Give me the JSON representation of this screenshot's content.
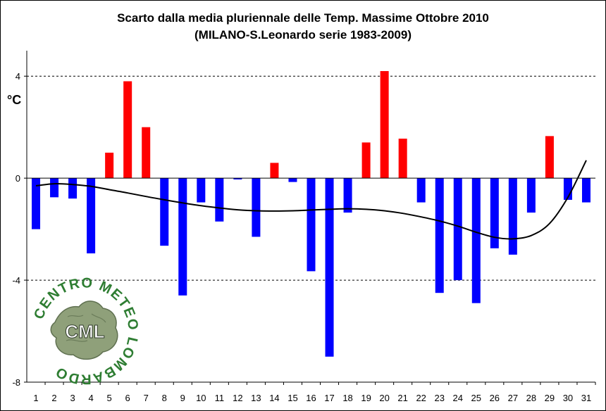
{
  "title_line1": "Scarto dalla media pluriennale delle Temp. Massime Ottobre 2010",
  "title_line2": "(MILANO-S.Leonardo serie 1983-2009)",
  "unit_label": "°C",
  "logo": {
    "text": "CML",
    "ring_text": "CENTRO METEO LOMBARDO"
  },
  "colors": {
    "positive": "#ff0000",
    "negative": "#0000ff",
    "trend": "#000000",
    "gridline": "#000000",
    "logo_green": "#2e7d32"
  },
  "chart_data": {
    "type": "bar",
    "title": "Scarto dalla media pluriennale delle Temp. Massime Ottobre 2010",
    "subtitle": "(MILANO-S.Leonardo serie 1983-2009)",
    "xlabel": "",
    "ylabel": "°C",
    "ylim": [
      -8,
      5
    ],
    "yticks": [
      4,
      0,
      -4,
      -8
    ],
    "grid": "dashed horizontal at ±4",
    "legend": "none",
    "categories": [
      "1",
      "2",
      "3",
      "4",
      "5",
      "6",
      "7",
      "8",
      "9",
      "10",
      "11",
      "12",
      "13",
      "14",
      "15",
      "16",
      "17",
      "18",
      "19",
      "20",
      "21",
      "22",
      "23",
      "24",
      "25",
      "26",
      "27",
      "28",
      "29",
      "30",
      "31"
    ],
    "values": [
      -2.0,
      -0.75,
      -0.8,
      -2.95,
      1.0,
      3.8,
      2.0,
      -2.65,
      -4.6,
      -0.95,
      -1.7,
      -0.05,
      -2.3,
      0.6,
      -0.15,
      -3.65,
      -7.0,
      -1.35,
      1.4,
      4.2,
      1.55,
      -0.95,
      -4.5,
      -4.0,
      -4.9,
      -2.75,
      -3.0,
      -1.35,
      1.65,
      -0.85,
      -0.95
    ],
    "trend": [
      -0.3,
      -0.22,
      -0.25,
      -0.32,
      -0.45,
      -0.58,
      -0.72,
      -0.85,
      -0.97,
      -1.08,
      -1.17,
      -1.24,
      -1.28,
      -1.29,
      -1.28,
      -1.25,
      -1.22,
      -1.2,
      -1.22,
      -1.28,
      -1.38,
      -1.52,
      -1.68,
      -1.88,
      -2.12,
      -2.32,
      -2.38,
      -2.25,
      -1.78,
      -0.75,
      0.7
    ]
  }
}
